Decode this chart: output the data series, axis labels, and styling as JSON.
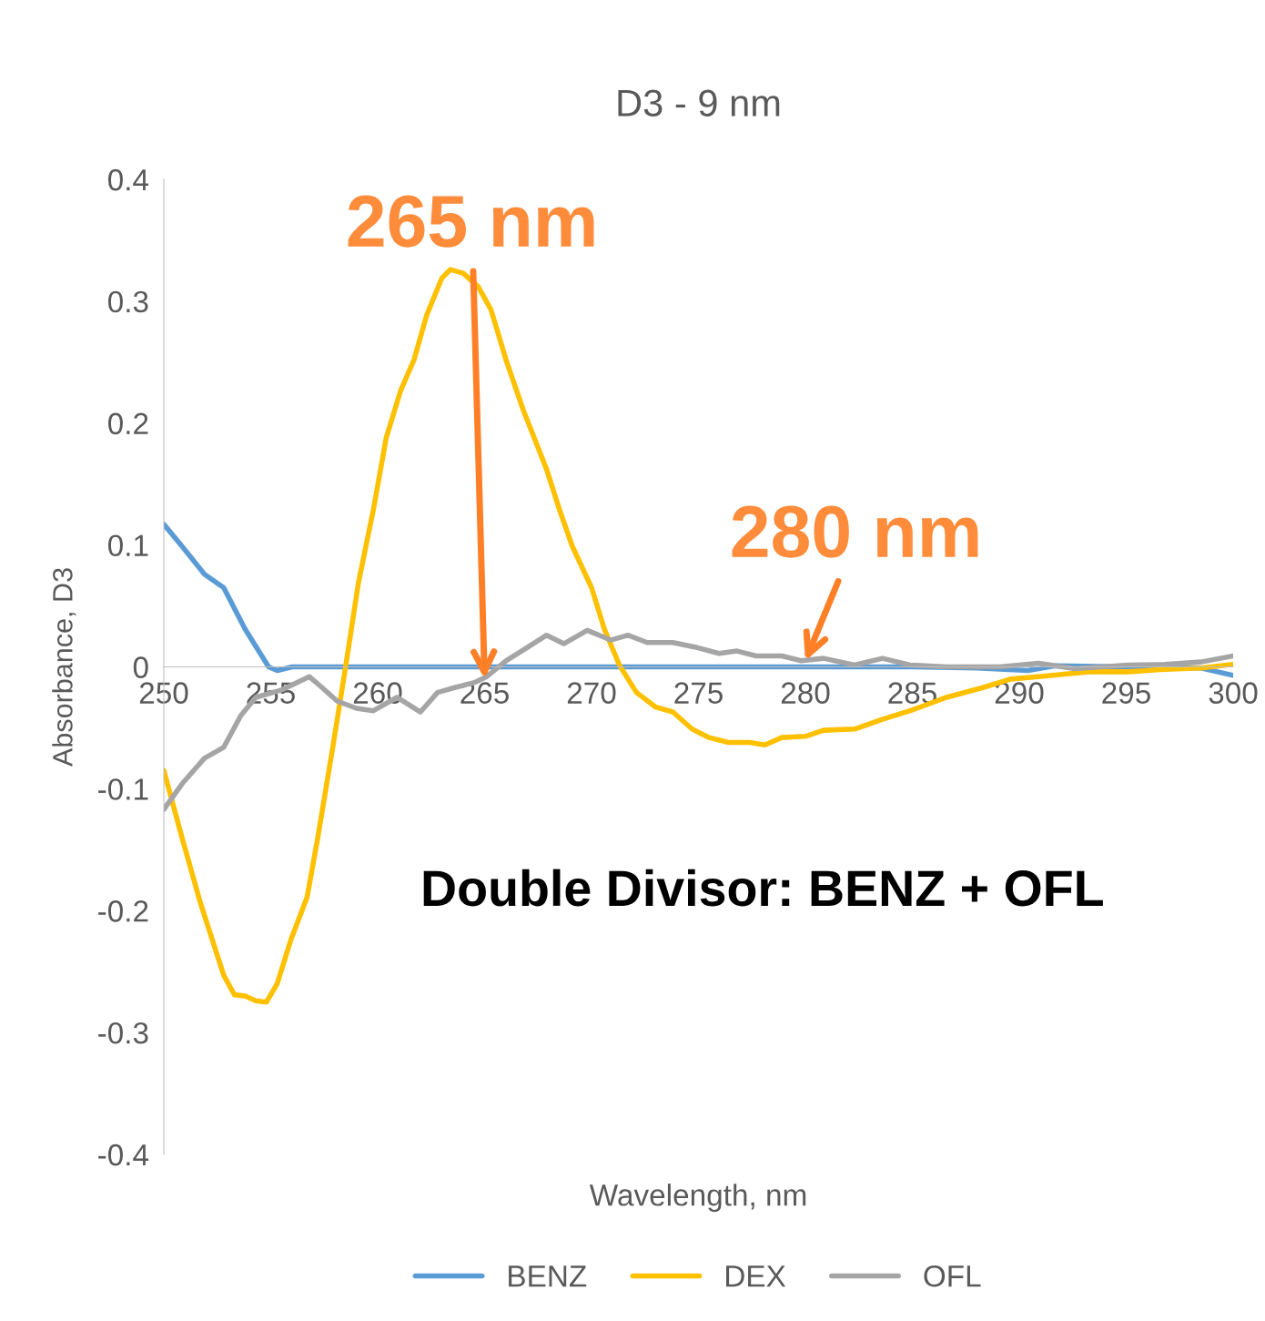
{
  "chart_data": {
    "type": "line",
    "title": "D3 - 9 nm",
    "xlabel": "Wavelength, nm",
    "ylabel": "Absorbance, D3",
    "xlim": [
      250,
      300
    ],
    "xticks": [
      250,
      255,
      260,
      265,
      270,
      275,
      280,
      285,
      290,
      295,
      300
    ],
    "ylim": [
      -0.4,
      0.4
    ],
    "yticks": [
      -0.4,
      -0.3,
      -0.2,
      -0.1,
      0,
      0.1,
      0.2,
      0.3,
      0.4
    ],
    "grid": false,
    "legend": "bottom",
    "marker": "none",
    "line_style": "solid",
    "series": [
      {
        "name": "BENZ",
        "color": "#5b9bd5",
        "x": [
          250,
          250.85,
          251.9,
          252.8,
          253.8,
          254.9,
          255.3,
          256,
          285,
          288,
          290.4,
          291.7,
          295,
          298.5,
          300
        ],
        "values": [
          0.117,
          0.099,
          0.076,
          0.065,
          0.031,
          0,
          -0.003,
          0,
          0,
          -0.001,
          -0.003,
          0.001,
          0,
          -0.001,
          -0.007
        ]
      },
      {
        "name": "DEX",
        "color": "#ffc000",
        "x": [
          250,
          250.85,
          251.7,
          252.8,
          253.3,
          253.8,
          254.3,
          254.8,
          255.3,
          255.96,
          256.7,
          257.2,
          257.9,
          258.5,
          259.1,
          259.8,
          260.4,
          261.06,
          261.7,
          262.3,
          263.0,
          263.4,
          264.0,
          264.7,
          265.3,
          266.0,
          266.8,
          267.9,
          268.5,
          269.1,
          270.0,
          270.6,
          271.3,
          272.1,
          273.0,
          273.8,
          274.7,
          275.5,
          276.4,
          277.4,
          278.1,
          278.9,
          280.0,
          280.85,
          282.3,
          283.6,
          284.9,
          286.6,
          288.3,
          289.6,
          290.9,
          292.1,
          293.4,
          295.1,
          296.8,
          298.5,
          300
        ],
        "values": [
          -0.085,
          -0.14,
          -0.193,
          -0.253,
          -0.269,
          -0.27,
          -0.274,
          -0.275,
          -0.26,
          -0.223,
          -0.189,
          -0.14,
          -0.066,
          0,
          0.069,
          0.129,
          0.188,
          0.226,
          0.252,
          0.289,
          0.319,
          0.326,
          0.323,
          0.312,
          0.293,
          0.252,
          0.211,
          0.162,
          0.129,
          0.099,
          0.065,
          0.031,
          0.0015,
          -0.021,
          -0.033,
          -0.037,
          -0.051,
          -0.058,
          -0.062,
          -0.062,
          -0.064,
          -0.058,
          -0.057,
          -0.052,
          -0.051,
          -0.043,
          -0.036,
          -0.025,
          -0.017,
          -0.01,
          -0.008,
          -0.006,
          -0.004,
          -0.004,
          -0.002,
          -0.001,
          0.002
        ]
      },
      {
        "name": "OFL",
        "color": "#a5a5a5",
        "x": [
          250,
          250.85,
          251.9,
          252.8,
          253.6,
          254.3,
          255.5,
          256.8,
          257.4,
          258.1,
          259.0,
          259.8,
          260.9,
          262.0,
          262.8,
          263.6,
          264.5,
          265.1,
          266.0,
          267.0,
          267.9,
          268.7,
          269.8,
          270.9,
          271.7,
          272.6,
          273.8,
          274.9,
          275.96,
          276.8,
          277.7,
          278.9,
          279.8,
          280.85,
          282.3,
          283.6,
          284.9,
          286.6,
          289.1,
          290.9,
          292.6,
          295.1,
          296.8,
          298.5,
          300
        ],
        "values": [
          -0.117,
          -0.096,
          -0.075,
          -0.066,
          -0.04,
          -0.025,
          -0.019,
          -0.008,
          -0.017,
          -0.028,
          -0.034,
          -0.036,
          -0.025,
          -0.037,
          -0.021,
          -0.017,
          -0.013,
          -0.008,
          0.005,
          0.016,
          0.026,
          0.019,
          0.03,
          0.022,
          0.026,
          0.02,
          0.02,
          0.016,
          0.011,
          0.013,
          0.009,
          0.009,
          0.005,
          0.007,
          0.0015,
          0.007,
          0.0015,
          0,
          0,
          0.003,
          -0.0015,
          0.0015,
          0.002,
          0.004,
          0.009
        ]
      }
    ],
    "annotations": [
      {
        "text": "265 nm",
        "x": 265,
        "y": -0.01
      },
      {
        "text": "280 nm",
        "x": 280,
        "y": 0.005
      },
      "Double Divisor: BENZ + OFL"
    ]
  }
}
